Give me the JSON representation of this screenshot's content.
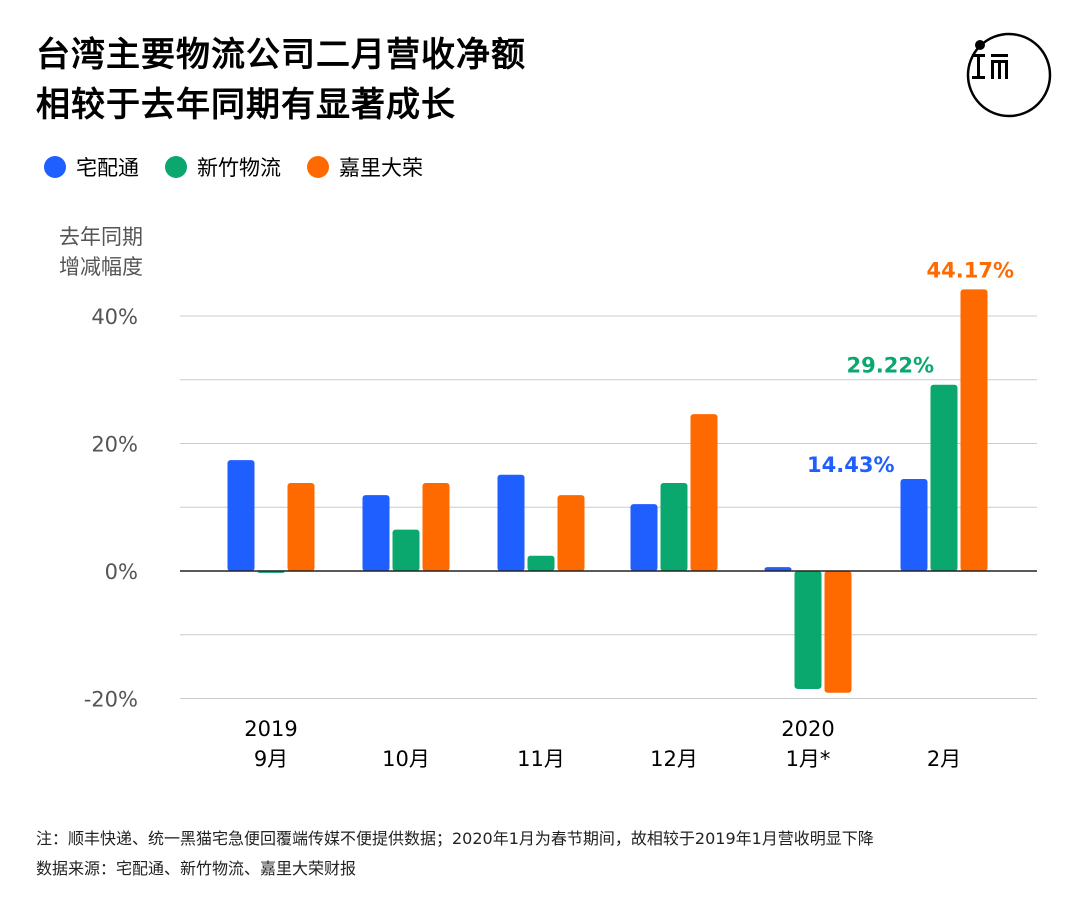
{
  "title": {
    "line1": "台湾主要物流公司二月营收净额",
    "line2": "相较于去年同期有显著成长"
  },
  "legend": [
    {
      "label": "宅配通",
      "color": "#1f5eff"
    },
    {
      "label": "新竹物流",
      "color": "#0aa86e"
    },
    {
      "label": "嘉里大荣",
      "color": "#ff6a00"
    }
  ],
  "logo": {
    "icon": "initium-logo-icon",
    "glyph": "ɪ ㎡"
  },
  "notes": {
    "note": "注：顺丰快递、统一黑猫宅急便回覆端传媒不便提供数据；2020年1月为春节期间，故相较于2019年1月营收明显下降",
    "source": "数据来源：宅配通、新竹物流、嘉里大荣财报"
  },
  "chart_data": {
    "type": "bar",
    "ylabel": "去年同期\n增减幅度",
    "ylim": [
      -20,
      45
    ],
    "yticks": [
      40,
      20,
      0,
      -20
    ],
    "ytick_labels": [
      "40%",
      "20%",
      "0%",
      "-20%"
    ],
    "grid": true,
    "categories": [
      {
        "year": "2019",
        "month": "9月"
      },
      {
        "year": "",
        "month": "10月"
      },
      {
        "year": "",
        "month": "11月"
      },
      {
        "year": "",
        "month": "12月"
      },
      {
        "year": "2020",
        "month": "1月*"
      },
      {
        "year": "",
        "month": "2月"
      }
    ],
    "series": [
      {
        "name": "宅配通",
        "color": "#1f5eff",
        "values": [
          17.4,
          11.9,
          15.1,
          10.5,
          0.6,
          14.43
        ]
      },
      {
        "name": "新竹物流",
        "color": "#0aa86e",
        "values": [
          -0.3,
          6.5,
          2.4,
          13.8,
          -18.5,
          29.22
        ]
      },
      {
        "name": "嘉里大荣",
        "color": "#ff6a00",
        "values": [
          13.8,
          13.8,
          11.9,
          24.6,
          -19.1,
          44.17
        ]
      }
    ],
    "data_labels": [
      {
        "series": 0,
        "index": 5,
        "text": "14.43%"
      },
      {
        "series": 1,
        "index": 5,
        "text": "29.22%"
      },
      {
        "series": 2,
        "index": 5,
        "text": "44.17%"
      }
    ]
  }
}
